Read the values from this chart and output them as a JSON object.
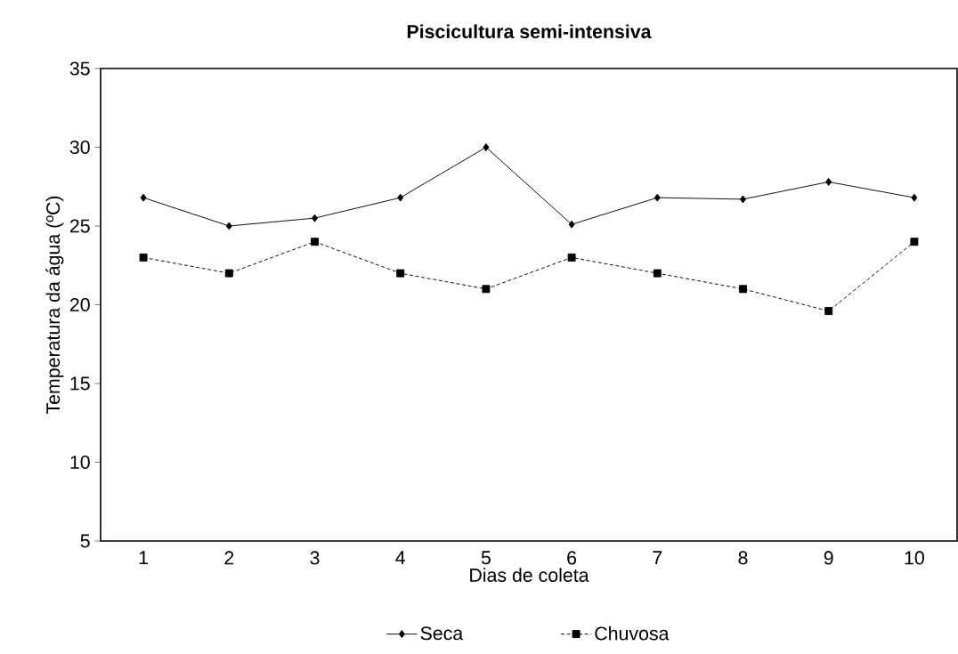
{
  "chart_data": {
    "type": "line",
    "title": "Piscicultura semi-intensiva",
    "xlabel": "Dias de coleta",
    "ylabel": "Temperatura da água (ºC)",
    "categories": [
      "1",
      "2",
      "3",
      "4",
      "5",
      "6",
      "7",
      "8",
      "9",
      "10"
    ],
    "ylim": [
      5,
      35
    ],
    "yticks": [
      5,
      10,
      15,
      20,
      25,
      30,
      35
    ],
    "legend": "bottom",
    "series": [
      {
        "name": "Seca",
        "color": "#000000",
        "marker": "diamond",
        "line_style": "solid",
        "values": [
          26.8,
          25.0,
          25.5,
          26.8,
          30.0,
          25.1,
          26.8,
          26.7,
          27.8,
          26.8
        ]
      },
      {
        "name": "Chuvosa",
        "color": "#000000",
        "marker": "square",
        "line_style": "dashed",
        "values": [
          23,
          22,
          24,
          22,
          21,
          23,
          22,
          21,
          19.6,
          24
        ]
      }
    ]
  }
}
